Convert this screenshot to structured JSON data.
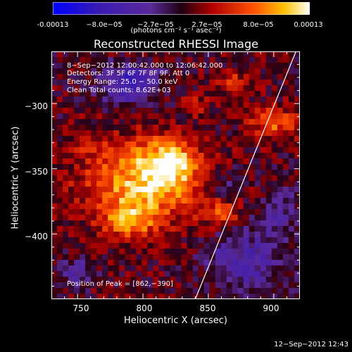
{
  "colorbar": {
    "ticks": [
      "-0.00013",
      "−8.0e−05",
      "−2.7e−05",
      "2.7e−05",
      "8.0e−05",
      "0.00013"
    ],
    "unit": "(photons cm⁻² s⁻¹ asec⁻²)"
  },
  "annotations": {
    "time_range": "8−Sep−2012 12:00:42.000 to 12:06:42.000",
    "detectors": "Detectors: 3F 5F 6F 7F 8F 9F, Att 0",
    "energy": "Energy Range: 25.0 − 50.0 keV",
    "clean": "Clean    Total counts: 8.62E+03",
    "peak": "Position of Peak = [862,−390]"
  },
  "stamp": "12−Sep−2012 12:43",
  "chart_data": {
    "type": "heatmap",
    "title": "Reconstructed RHESSI Image",
    "xlabel": "Heliocentric X (arcsec)",
    "ylabel": "Heliocentric Y (arcsec)",
    "xlim": [
      730,
      920
    ],
    "ylim": [
      -450,
      -260
    ],
    "xticks": [
      750,
      800,
      850,
      900
    ],
    "yticks": [
      -300,
      -350,
      -400
    ],
    "ytick_labels": [
      "−300",
      "−350",
      "−400"
    ],
    "clim": [
      -0.00013,
      0.00013
    ],
    "colormap": "blue-purple-red-yellow-white",
    "peak": [
      862,
      -390
    ],
    "limb_line": [
      [
        840,
        -450
      ],
      [
        917,
        -260
      ]
    ]
  }
}
